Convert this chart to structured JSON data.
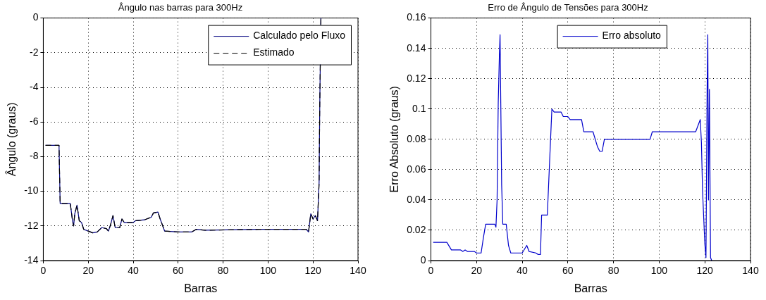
{
  "chart_data": [
    {
      "type": "line",
      "title": "Ângulo nas barras para 300Hz",
      "xlabel": "Barras",
      "ylabel": "Ângulo (graus)",
      "x": [
        1,
        7,
        7.5,
        8,
        12,
        13,
        13.5,
        14,
        15,
        16,
        17,
        18,
        20,
        22,
        24,
        26,
        28,
        29,
        30,
        31,
        32,
        34,
        35,
        36,
        40,
        41,
        45,
        48,
        49,
        51,
        52,
        54,
        60,
        66,
        68,
        72,
        96,
        117,
        118,
        119,
        120,
        121,
        122,
        122.7,
        123,
        123.5
      ],
      "series": [
        {
          "name": "Calculado pelo Fluxo",
          "color": "#00007f",
          "line_style": "solid",
          "values": [
            -7.35,
            -7.35,
            -10.7,
            -10.7,
            -10.7,
            -11.7,
            -12.0,
            -11.3,
            -10.8,
            -11.7,
            -11.8,
            -12.2,
            -12.3,
            -12.4,
            -12.35,
            -12.1,
            -12.15,
            -12.3,
            -11.9,
            -11.4,
            -12.1,
            -12.1,
            -11.6,
            -11.8,
            -11.8,
            -11.7,
            -11.65,
            -11.5,
            -11.25,
            -11.2,
            -11.6,
            -12.3,
            -12.35,
            -12.35,
            -12.2,
            -12.25,
            -12.2,
            -12.2,
            -12.35,
            -11.3,
            -11.6,
            -11.4,
            -11.7,
            -9.5,
            -5,
            0
          ]
        },
        {
          "name": "Estimado",
          "color": "#000000",
          "line_style": "dashed",
          "values": [
            -7.35,
            -7.35,
            -10.7,
            -10.7,
            -10.7,
            -11.7,
            -12.0,
            -11.3,
            -10.8,
            -11.7,
            -11.8,
            -12.2,
            -12.3,
            -12.4,
            -12.35,
            -12.1,
            -12.15,
            -12.3,
            -11.9,
            -11.4,
            -12.1,
            -12.1,
            -11.6,
            -11.8,
            -11.8,
            -11.7,
            -11.65,
            -11.5,
            -11.25,
            -11.2,
            -11.6,
            -12.3,
            -12.35,
            -12.35,
            -12.2,
            -12.25,
            -12.2,
            -12.2,
            -12.35,
            -11.3,
            -11.6,
            -11.4,
            -11.7,
            -9.5,
            -5,
            0
          ]
        }
      ],
      "xlim": [
        0,
        140
      ],
      "xticks": [
        0,
        20,
        40,
        60,
        80,
        100,
        120,
        140
      ],
      "ylim": [
        -14,
        0
      ],
      "yticks": [
        -14,
        -12,
        -10,
        -8,
        -6,
        -4,
        -2,
        0
      ],
      "grid": true,
      "legend": "top right",
      "marker": "none"
    },
    {
      "type": "line",
      "title": "Erro de Ângulo de Tensões para 300Hz",
      "xlabel": "Barras",
      "ylabel": "Erro Absoluto (graus)",
      "x": [
        1,
        7,
        9,
        13,
        14,
        15,
        16,
        19,
        20,
        22,
        23,
        24,
        28,
        28.5,
        29,
        29.5,
        30,
        30.3,
        31,
        31.5,
        33,
        34,
        35,
        40,
        42,
        43,
        46,
        47,
        48,
        48.5,
        51,
        52,
        53,
        54,
        57,
        58,
        60,
        61,
        66,
        67,
        71,
        73,
        74,
        75,
        76,
        96,
        97,
        116,
        118,
        118.5,
        119,
        120,
        120.5,
        121,
        121.3,
        121.6,
        122,
        122.5,
        123
      ],
      "series": [
        {
          "name": "Erro absoluto",
          "color": "#0000cc",
          "line_style": "solid",
          "values": [
            0.012,
            0.012,
            0.007,
            0.007,
            0.006,
            0.007,
            0.006,
            0.006,
            0.005,
            0.005,
            0.015,
            0.024,
            0.024,
            0.022,
            0.04,
            0.104,
            0.135,
            0.149,
            0.05,
            0.024,
            0.024,
            0.01,
            0.005,
            0.005,
            0.01,
            0.006,
            0.005,
            0.004,
            0.004,
            0.03,
            0.03,
            0.065,
            0.1,
            0.098,
            0.098,
            0.095,
            0.095,
            0.093,
            0.093,
            0.085,
            0.085,
            0.075,
            0.072,
            0.072,
            0.08,
            0.08,
            0.085,
            0.085,
            0.093,
            0.078,
            0.046,
            0.011,
            0.002,
            0.113,
            0.149,
            0.04,
            0.113,
            0.002,
            0
          ]
        }
      ],
      "xlim": [
        0,
        140
      ],
      "xticks": [
        0,
        20,
        40,
        60,
        80,
        100,
        120,
        140
      ],
      "ylim": [
        0,
        0.16
      ],
      "yticks": [
        0,
        0.02,
        0.04,
        0.06,
        0.08,
        0.1,
        0.12,
        0.14,
        0.16
      ],
      "grid": true,
      "legend": "top",
      "marker": "none"
    }
  ]
}
